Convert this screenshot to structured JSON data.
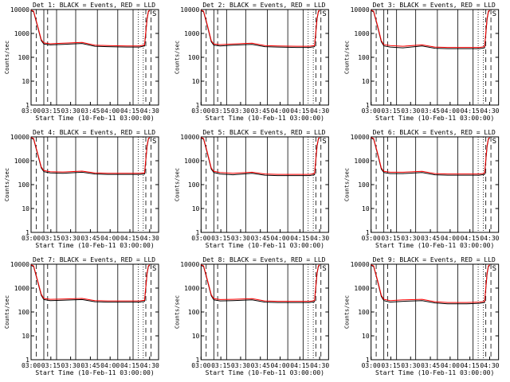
{
  "chart_data": [
    {
      "type": "line",
      "title": "Det 1: BLACK = Events, RED = LLD",
      "xlabel": "Start Time (10-Feb-11 03:00:00)",
      "ylabel": "Counts/sec",
      "xticks": [
        "03:00",
        "03:15",
        "03:30",
        "03:45",
        "04:00",
        "04:15",
        "04:30"
      ],
      "yticks": [
        "1",
        "10",
        "100",
        "1000",
        "10000"
      ],
      "ylim": [
        1,
        10000
      ],
      "yscale": "log",
      "xlim_min": [
        0,
        100
      ],
      "corner_label": "S",
      "series": [
        {
          "color": "#000000",
          "x": [
            0,
            2,
            5,
            8,
            10,
            15,
            25,
            40,
            50,
            60,
            75,
            85,
            89,
            91,
            92,
            93
          ],
          "y": [
            9000,
            8000,
            2000,
            500,
            360,
            330,
            350,
            380,
            290,
            280,
            270,
            270,
            300,
            4000,
            8000,
            9000
          ]
        },
        {
          "color": "#ff0000",
          "x": [
            0,
            2,
            5,
            8,
            10,
            15,
            25,
            40,
            50,
            60,
            75,
            85,
            89,
            91,
            92,
            93
          ],
          "y": [
            9500,
            8500,
            2200,
            550,
            400,
            370,
            390,
            420,
            320,
            310,
            300,
            300,
            330,
            4500,
            8500,
            9500
          ]
        }
      ]
    },
    {
      "type": "line",
      "title": "Det 2: BLACK = Events, RED = LLD",
      "xlabel": "Start Time (10-Feb-11 03:00:00)",
      "ylabel": "Counts/sec",
      "xticks": [
        "03:00",
        "03:15",
        "03:30",
        "03:45",
        "04:00",
        "04:15",
        "04:30"
      ],
      "yticks": [
        "1",
        "10",
        "100",
        "1000",
        "10000"
      ],
      "ylim": [
        1,
        10000
      ],
      "yscale": "log",
      "corner_label": "S",
      "series": [
        {
          "color": "#000000",
          "x": [
            0,
            2,
            5,
            8,
            10,
            15,
            25,
            40,
            50,
            60,
            75,
            85,
            89,
            91,
            92,
            93
          ],
          "y": [
            9000,
            8000,
            2000,
            450,
            320,
            300,
            320,
            350,
            280,
            270,
            260,
            260,
            280,
            4000,
            8000,
            9000
          ]
        },
        {
          "color": "#ff0000",
          "x": [
            0,
            2,
            5,
            8,
            10,
            15,
            25,
            40,
            50,
            60,
            75,
            85,
            89,
            91,
            92,
            93
          ],
          "y": [
            9500,
            8500,
            2200,
            500,
            360,
            340,
            360,
            390,
            310,
            300,
            290,
            290,
            310,
            4500,
            8500,
            9500
          ]
        }
      ]
    },
    {
      "type": "line",
      "title": "Det 3: BLACK = Events, RED = LLD",
      "xlabel": "Start Time (10-Feb-11 03:00:00)",
      "ylabel": "Counts/sec",
      "xticks": [
        "03:00",
        "03:15",
        "03:30",
        "03:45",
        "04:00",
        "04:15",
        "04:30"
      ],
      "yticks": [
        "1",
        "10",
        "100",
        "1000",
        "10000"
      ],
      "ylim": [
        1,
        10000
      ],
      "yscale": "log",
      "corner_label": "S",
      "series": [
        {
          "color": "#000000",
          "x": [
            0,
            2,
            5,
            8,
            10,
            15,
            25,
            40,
            50,
            60,
            75,
            85,
            89,
            91,
            92,
            93
          ],
          "y": [
            9000,
            8000,
            2000,
            450,
            300,
            270,
            250,
            300,
            240,
            230,
            230,
            230,
            250,
            4000,
            8000,
            9000
          ]
        },
        {
          "color": "#ff0000",
          "x": [
            0,
            2,
            5,
            8,
            10,
            15,
            25,
            40,
            50,
            60,
            75,
            85,
            89,
            91,
            92,
            93
          ],
          "y": [
            9500,
            8500,
            2200,
            500,
            340,
            310,
            290,
            330,
            270,
            260,
            260,
            260,
            280,
            4500,
            8500,
            9500
          ]
        }
      ]
    },
    {
      "type": "line",
      "title": "Det 4: BLACK = Events, RED = LLD",
      "xlabel": "Start Time (10-Feb-11 03:00:00)",
      "ylabel": "Counts/sec",
      "xticks": [
        "03:00",
        "03:15",
        "03:30",
        "03:45",
        "04:00",
        "04:15",
        "04:30"
      ],
      "yticks": [
        "1",
        "10",
        "100",
        "1000",
        "10000"
      ],
      "ylim": [
        1,
        10000
      ],
      "yscale": "log",
      "corner_label": "S",
      "series": [
        {
          "color": "#000000",
          "x": [
            0,
            2,
            5,
            8,
            10,
            15,
            25,
            40,
            50,
            60,
            75,
            85,
            89,
            91,
            92,
            93
          ],
          "y": [
            9000,
            8000,
            2000,
            500,
            350,
            310,
            300,
            330,
            280,
            270,
            270,
            270,
            280,
            4000,
            8000,
            9000
          ]
        },
        {
          "color": "#ff0000",
          "x": [
            0,
            2,
            5,
            8,
            10,
            15,
            25,
            40,
            50,
            60,
            75,
            85,
            89,
            91,
            92,
            93
          ],
          "y": [
            9500,
            8500,
            2200,
            550,
            390,
            350,
            340,
            370,
            310,
            300,
            300,
            300,
            310,
            4500,
            8500,
            9500
          ]
        }
      ]
    },
    {
      "type": "line",
      "title": "Det 5: BLACK = Events, RED = LLD",
      "xlabel": "Start Time (10-Feb-11 03:00:00)",
      "ylabel": "Counts/sec",
      "xticks": [
        "03:00",
        "03:15",
        "03:30",
        "03:45",
        "04:00",
        "04:15",
        "04:30"
      ],
      "yticks": [
        "1",
        "10",
        "100",
        "1000",
        "10000"
      ],
      "ylim": [
        1,
        10000
      ],
      "yscale": "log",
      "corner_label": "S",
      "series": [
        {
          "color": "#000000",
          "x": [
            0,
            2,
            5,
            8,
            10,
            15,
            25,
            40,
            50,
            60,
            75,
            85,
            89,
            91,
            92,
            93
          ],
          "y": [
            9000,
            8000,
            2000,
            450,
            320,
            280,
            260,
            300,
            250,
            240,
            240,
            240,
            260,
            4000,
            8000,
            9000
          ]
        },
        {
          "color": "#ff0000",
          "x": [
            0,
            2,
            5,
            8,
            10,
            15,
            25,
            40,
            50,
            60,
            75,
            85,
            89,
            91,
            92,
            93
          ],
          "y": [
            9500,
            8500,
            2200,
            500,
            360,
            320,
            300,
            330,
            280,
            270,
            270,
            270,
            290,
            4500,
            8500,
            9500
          ]
        }
      ]
    },
    {
      "type": "line",
      "title": "Det 6: BLACK = Events, RED = LLD",
      "xlabel": "Start Time (10-Feb-11 03:00:00)",
      "ylabel": "Counts/sec",
      "xticks": [
        "03:00",
        "03:15",
        "03:30",
        "03:45",
        "04:00",
        "04:15",
        "04:30"
      ],
      "yticks": [
        "1",
        "10",
        "100",
        "1000",
        "10000"
      ],
      "ylim": [
        1,
        10000
      ],
      "yscale": "log",
      "corner_label": "S",
      "series": [
        {
          "color": "#000000",
          "x": [
            0,
            2,
            5,
            8,
            10,
            15,
            25,
            40,
            50,
            60,
            75,
            85,
            89,
            91,
            92,
            93
          ],
          "y": [
            9000,
            8000,
            2000,
            450,
            320,
            290,
            290,
            320,
            260,
            250,
            250,
            250,
            270,
            4000,
            8000,
            9000
          ]
        },
        {
          "color": "#ff0000",
          "x": [
            0,
            2,
            5,
            8,
            10,
            15,
            25,
            40,
            50,
            60,
            75,
            85,
            89,
            91,
            92,
            93
          ],
          "y": [
            9500,
            8500,
            2200,
            500,
            360,
            330,
            330,
            360,
            290,
            280,
            280,
            280,
            300,
            4500,
            8500,
            9500
          ]
        }
      ]
    },
    {
      "type": "line",
      "title": "Det 7: BLACK = Events, RED = LLD",
      "xlabel": "Start Time (10-Feb-11 03:00:00)",
      "ylabel": "Counts/sec",
      "xticks": [
        "03:00",
        "03:15",
        "03:30",
        "03:45",
        "04:00",
        "04:15",
        "04:30"
      ],
      "yticks": [
        "1",
        "10",
        "100",
        "1000",
        "10000"
      ],
      "ylim": [
        1,
        10000
      ],
      "yscale": "log",
      "corner_label": "S",
      "series": [
        {
          "color": "#000000",
          "x": [
            0,
            2,
            5,
            8,
            10,
            15,
            25,
            40,
            50,
            60,
            75,
            85,
            89,
            91,
            92,
            93
          ],
          "y": [
            9000,
            8000,
            2000,
            500,
            330,
            300,
            310,
            330,
            270,
            260,
            260,
            260,
            280,
            4000,
            8000,
            9000
          ]
        },
        {
          "color": "#ff0000",
          "x": [
            0,
            2,
            5,
            8,
            10,
            15,
            25,
            40,
            50,
            60,
            75,
            85,
            89,
            91,
            92,
            93
          ],
          "y": [
            9500,
            8500,
            2200,
            550,
            370,
            340,
            350,
            370,
            300,
            290,
            290,
            290,
            310,
            4500,
            8500,
            9500
          ]
        }
      ]
    },
    {
      "type": "line",
      "title": "Det 8: BLACK = Events, RED = LLD",
      "xlabel": "Start Time (10-Feb-11 03:00:00)",
      "ylabel": "Counts/sec",
      "xticks": [
        "03:00",
        "03:15",
        "03:30",
        "03:45",
        "04:00",
        "04:15",
        "04:30"
      ],
      "yticks": [
        "1",
        "10",
        "100",
        "1000",
        "10000"
      ],
      "ylim": [
        1,
        10000
      ],
      "yscale": "log",
      "corner_label": "S",
      "series": [
        {
          "color": "#000000",
          "x": [
            0,
            2,
            5,
            8,
            10,
            15,
            25,
            40,
            50,
            60,
            75,
            85,
            89,
            91,
            92,
            93
          ],
          "y": [
            9000,
            8000,
            2000,
            480,
            320,
            290,
            300,
            320,
            260,
            250,
            250,
            250,
            270,
            4000,
            8000,
            9000
          ]
        },
        {
          "color": "#ff0000",
          "x": [
            0,
            2,
            5,
            8,
            10,
            15,
            25,
            40,
            50,
            60,
            75,
            85,
            89,
            91,
            92,
            93
          ],
          "y": [
            9500,
            8500,
            2200,
            530,
            360,
            330,
            340,
            360,
            290,
            280,
            280,
            280,
            300,
            4500,
            8500,
            9500
          ]
        }
      ]
    },
    {
      "type": "line",
      "title": "Det 9: BLACK = Events, RED = LLD",
      "xlabel": "Start Time (10-Feb-11 03:00:00)",
      "ylabel": "Counts/sec",
      "xticks": [
        "03:00",
        "03:15",
        "03:30",
        "03:45",
        "04:00",
        "04:15",
        "04:30"
      ],
      "yticks": [
        "1",
        "10",
        "100",
        "1000",
        "10000"
      ],
      "ylim": [
        1,
        10000
      ],
      "yscale": "log",
      "corner_label": "S",
      "series": [
        {
          "color": "#000000",
          "x": [
            0,
            2,
            5,
            8,
            10,
            15,
            25,
            40,
            50,
            60,
            75,
            85,
            89,
            91,
            92,
            93
          ],
          "y": [
            9000,
            8000,
            2000,
            450,
            300,
            260,
            280,
            300,
            240,
            220,
            220,
            230,
            250,
            4000,
            8000,
            9000
          ]
        },
        {
          "color": "#ff0000",
          "x": [
            0,
            2,
            5,
            8,
            10,
            15,
            25,
            40,
            50,
            60,
            75,
            85,
            89,
            91,
            92,
            93
          ],
          "y": [
            9500,
            8500,
            2200,
            500,
            340,
            300,
            320,
            340,
            270,
            250,
            250,
            260,
            280,
            4500,
            8500,
            9500
          ]
        }
      ]
    }
  ]
}
